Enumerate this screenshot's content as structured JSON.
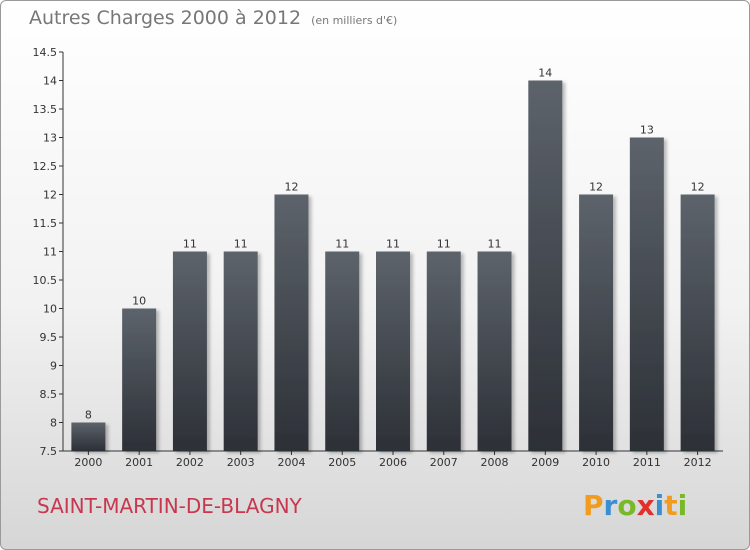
{
  "title": "Autres Charges 2000 à 2012",
  "subtitle": "(en milliers d'€)",
  "commune": "SAINT-MARTIN-DE-BLAGNY",
  "logo": {
    "letters": [
      "P",
      "r",
      "o",
      "x",
      "i",
      "t",
      "i"
    ],
    "colors": [
      "#f29c1f",
      "#3a8fd1",
      "#79b928",
      "#e2312b",
      "#3a8fd1",
      "#f29c1f",
      "#79b928"
    ]
  },
  "chart_data": {
    "type": "bar",
    "categories": [
      "2000",
      "2001",
      "2002",
      "2003",
      "2004",
      "2005",
      "2006",
      "2007",
      "2008",
      "2009",
      "2010",
      "2011",
      "2012"
    ],
    "values": [
      8,
      10,
      11,
      11,
      12,
      11,
      11,
      11,
      11,
      14,
      12,
      13,
      12
    ],
    "labels": [
      "8",
      "10",
      "11",
      "11",
      "12",
      "11",
      "11",
      "11",
      "11",
      "14",
      "12",
      "13",
      "12"
    ],
    "ylim": [
      7.5,
      14.5
    ],
    "yticks": [
      7.5,
      8,
      8.5,
      9,
      9.5,
      10,
      10.5,
      11,
      11.5,
      12,
      12.5,
      13,
      13.5,
      14,
      14.5
    ],
    "ytick_labels": [
      "7.5",
      "8",
      "8.5",
      "9",
      "9.5",
      "10",
      "10.5",
      "11",
      "11.5",
      "12",
      "12.5",
      "13",
      "13.5",
      "14",
      "14.5"
    ],
    "grid": false,
    "bar_color": "#4a4f56"
  }
}
